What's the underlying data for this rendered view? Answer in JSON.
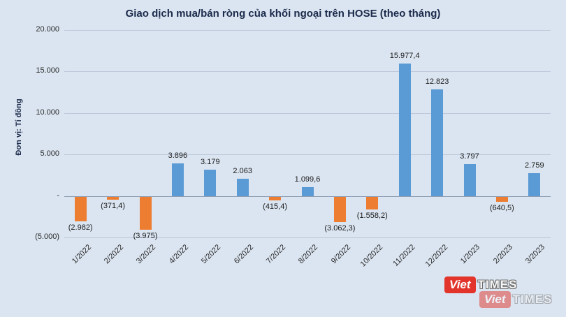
{
  "page": {
    "title": "Giao dịch mua/bán ròng của khối ngoại trên HOSE (theo tháng)",
    "y_axis_label": "Đơn vị: Tỉ đồng"
  },
  "watermark": {
    "brand_red": "Viet",
    "brand_rest": "TIMES"
  },
  "colors": {
    "positive_bar": "#5b9bd5",
    "negative_bar": "#ed7d31",
    "background": "#dbe5f1",
    "gridline": "#bcc8da",
    "zero_line": "#8f9eb3",
    "title_text": "#1b2a4a"
  },
  "chart_data": {
    "type": "bar",
    "title": "Giao dịch mua/bán ròng của khối ngoại trên HOSE (theo tháng)",
    "ylabel": "Đơn vị: Tỉ đồng",
    "xlabel": "",
    "grid": true,
    "ylim": [
      -5000,
      20000
    ],
    "categories": [
      "1/2022",
      "2/2022",
      "3/2022",
      "4/2022",
      "5/2022",
      "6/2022",
      "7/2022",
      "8/2022",
      "9/2022",
      "10/2022",
      "11/2022",
      "12/2022",
      "1/2023",
      "2/2023",
      "3/2023"
    ],
    "values": [
      -2982,
      -371.4,
      -3975,
      3896,
      3179,
      2063,
      -415.4,
      1099.6,
      -3062.3,
      -1558.2,
      15977.4,
      12823,
      3797,
      -640.5,
      2759
    ],
    "value_labels": [
      "(2.982)",
      "(371,4)",
      "(3.975)",
      "3.896",
      "3.179",
      "2.063",
      "(415,4)",
      "1.099,6",
      "(3.062,3)",
      "(1.558,2)",
      "15.977,4",
      "12.823",
      "3.797",
      "(640,5)",
      "2.759"
    ],
    "yticks": [
      {
        "value": 20000,
        "label": "20.000"
      },
      {
        "value": 15000,
        "label": "15.000"
      },
      {
        "value": 10000,
        "label": "10.000"
      },
      {
        "value": 5000,
        "label": "5.000"
      },
      {
        "value": 0,
        "label": "-"
      },
      {
        "value": -5000,
        "label": "(5.000)"
      }
    ]
  }
}
